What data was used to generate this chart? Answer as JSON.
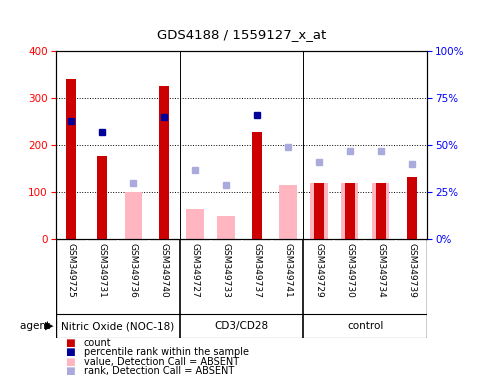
{
  "title": "GDS4188 / 1559127_x_at",
  "samples": [
    "GSM349725",
    "GSM349731",
    "GSM349736",
    "GSM349740",
    "GSM349727",
    "GSM349733",
    "GSM349737",
    "GSM349741",
    "GSM349729",
    "GSM349730",
    "GSM349734",
    "GSM349739"
  ],
  "group_boundaries": [
    3.5,
    7.5
  ],
  "group_centers": [
    1.5,
    5.5,
    9.5
  ],
  "group_names": [
    "Nitric Oxide (NOC-18)",
    "CD3/CD28",
    "control"
  ],
  "count_present": {
    "GSM349725": 340,
    "GSM349731": 178,
    "GSM349740": 325,
    "GSM349737": 228,
    "GSM349729": 120,
    "GSM349730": 120,
    "GSM349734": 120,
    "GSM349739": 133
  },
  "value_absent": {
    "GSM349736": 100,
    "GSM349727": 65,
    "GSM349733": 50,
    "GSM349741": 115,
    "GSM349729": 120,
    "GSM349730": 120,
    "GSM349734": 120
  },
  "percentile_present": {
    "GSM349725": 63,
    "GSM349731": 57,
    "GSM349740": 65,
    "GSM349737": 66
  },
  "rank_absent": {
    "GSM349736": 30,
    "GSM349727": 37,
    "GSM349733": 29,
    "GSM349741": 49,
    "GSM349729": 41,
    "GSM349730": 47,
    "GSM349734": 47,
    "GSM349739": 40
  },
  "ylim_left": [
    0,
    400
  ],
  "ylim_right": [
    0,
    100
  ],
  "yticks_left": [
    0,
    100,
    200,
    300,
    400
  ],
  "yticks_right": [
    0,
    25,
    50,
    75,
    100
  ],
  "red_color": "#CC0000",
  "pink_color": "#FFB6C1",
  "blue_color": "#000099",
  "purple_color": "#AAAADD",
  "bg_color": "#C8C8C8",
  "group_bg": "#66DD66",
  "legend_labels": [
    "count",
    "percentile rank within the sample",
    "value, Detection Call = ABSENT",
    "rank, Detection Call = ABSENT"
  ]
}
